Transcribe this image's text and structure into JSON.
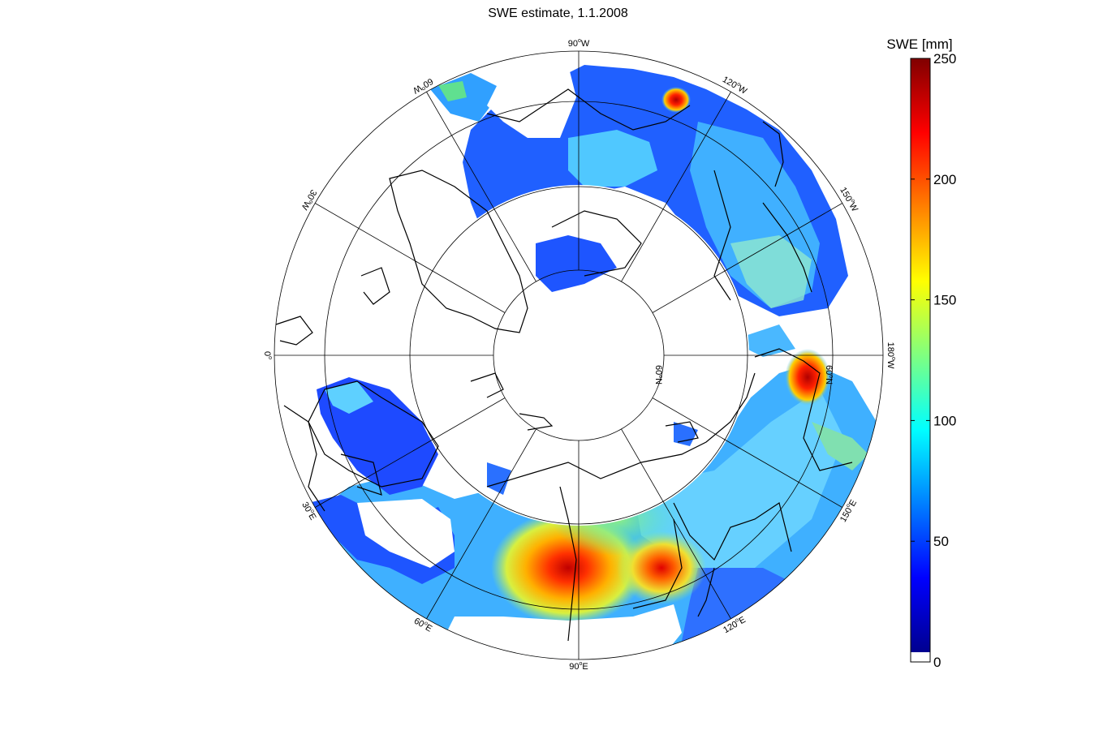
{
  "title": "SWE estimate, 1.1.2008",
  "colorbar": {
    "title": "SWE [mm]",
    "min": 0,
    "max": 250,
    "ticks": [
      "0",
      "50",
      "100",
      "150",
      "200",
      "250"
    ],
    "colormap": "jet"
  },
  "map": {
    "projection": "north-polar-stereographic",
    "longitude_labels": [
      {
        "id": "lon-90w",
        "base": "90",
        "suffix": "W"
      },
      {
        "id": "lon-120w",
        "base": "120",
        "suffix": "W"
      },
      {
        "id": "lon-150w",
        "base": "150",
        "suffix": "W"
      },
      {
        "id": "lon-180w",
        "base": "180",
        "suffix": "W"
      },
      {
        "id": "lon-150e",
        "base": "150",
        "suffix": "E"
      },
      {
        "id": "lon-120e",
        "base": "120",
        "suffix": "E"
      },
      {
        "id": "lon-90e",
        "base": "90",
        "suffix": "E"
      },
      {
        "id": "lon-60e",
        "base": "60",
        "suffix": "E"
      },
      {
        "id": "lon-30e",
        "base": "30",
        "suffix": "E"
      },
      {
        "id": "lon-0",
        "base": "0",
        "suffix": ""
      },
      {
        "id": "lon-30w",
        "base": "30",
        "suffix": "W"
      },
      {
        "id": "lon-60w",
        "base": "60",
        "suffix": "W"
      }
    ],
    "latitude_labels": [
      "60",
      "60"
    ],
    "colors": {
      "ocean": "#ffffff",
      "no_snow": "#ffffff",
      "coastline": "#000000",
      "grid": "#000000"
    }
  }
}
